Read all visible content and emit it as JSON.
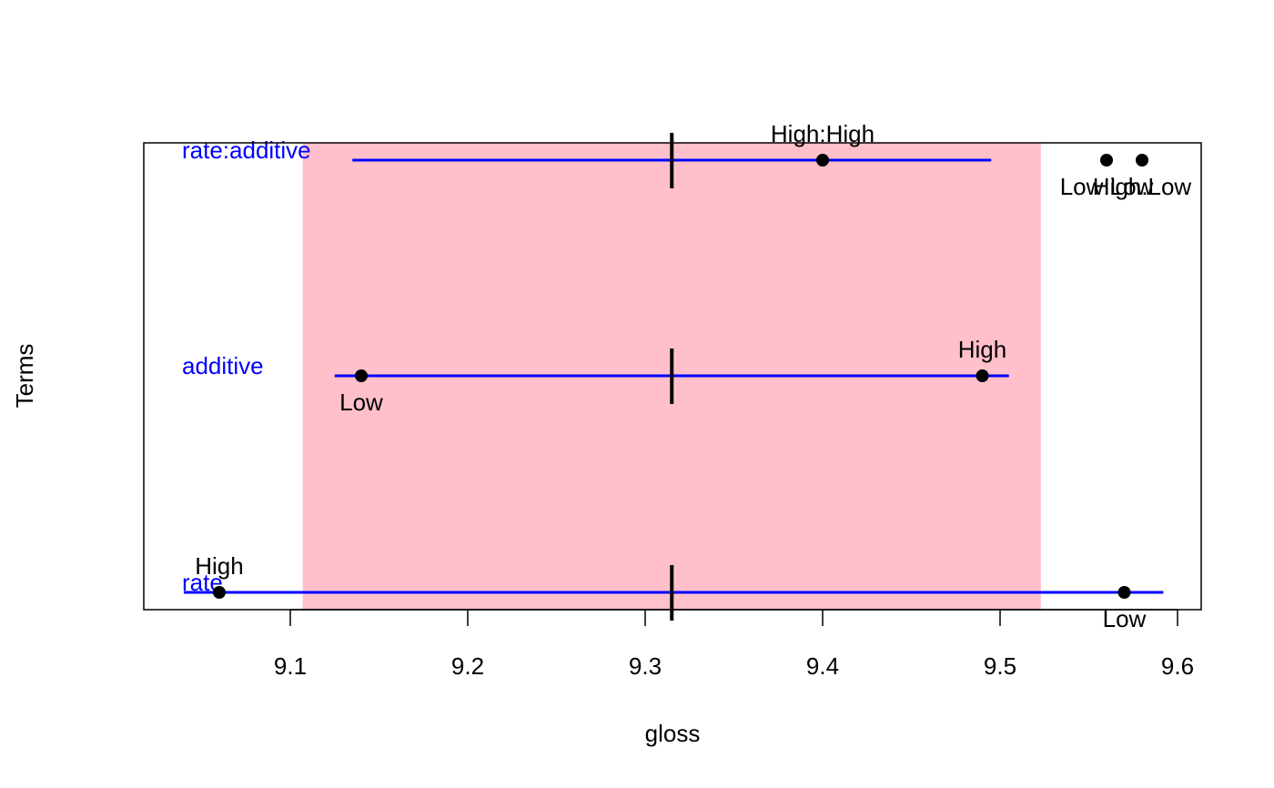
{
  "chart_data": {
    "type": "scatter",
    "xlabel": "gloss",
    "ylabel": "Terms",
    "xlim": [
      9.02,
      9.615
    ],
    "x_ticks": [
      9.1,
      9.2,
      9.3,
      9.4,
      9.5,
      9.6
    ],
    "x_tick_labels": [
      "9.1",
      "9.2",
      "9.3",
      "9.4",
      "9.5",
      "9.6"
    ],
    "grand_mean": 9.315,
    "shaded_interval": [
      9.107,
      9.523
    ],
    "colors": {
      "shade": "#FFC0CB",
      "term_line": "#0000FF",
      "term_label": "#0000FF",
      "point": "#000000",
      "frame": "#000000"
    },
    "terms": [
      {
        "name": "rate",
        "interval": [
          9.04,
          9.592
        ],
        "levels": [
          {
            "label": "High",
            "x": 9.06,
            "label_pos": "above"
          },
          {
            "label": "Low",
            "x": 9.57,
            "label_pos": "below"
          }
        ]
      },
      {
        "name": "additive",
        "interval": [
          9.125,
          9.505
        ],
        "levels": [
          {
            "label": "Low",
            "x": 9.14,
            "label_pos": "below"
          },
          {
            "label": "High",
            "x": 9.49,
            "label_pos": "above"
          }
        ]
      },
      {
        "name": "rate:additive",
        "interval": [
          9.135,
          9.495
        ],
        "levels": [
          {
            "label": "High:High",
            "x": 9.4,
            "label_pos": "above"
          },
          {
            "label": "Low:Low",
            "x": 9.56,
            "label_pos": "below"
          },
          {
            "label": "High:Low",
            "x": 9.58,
            "label_pos": "below"
          }
        ]
      }
    ]
  }
}
